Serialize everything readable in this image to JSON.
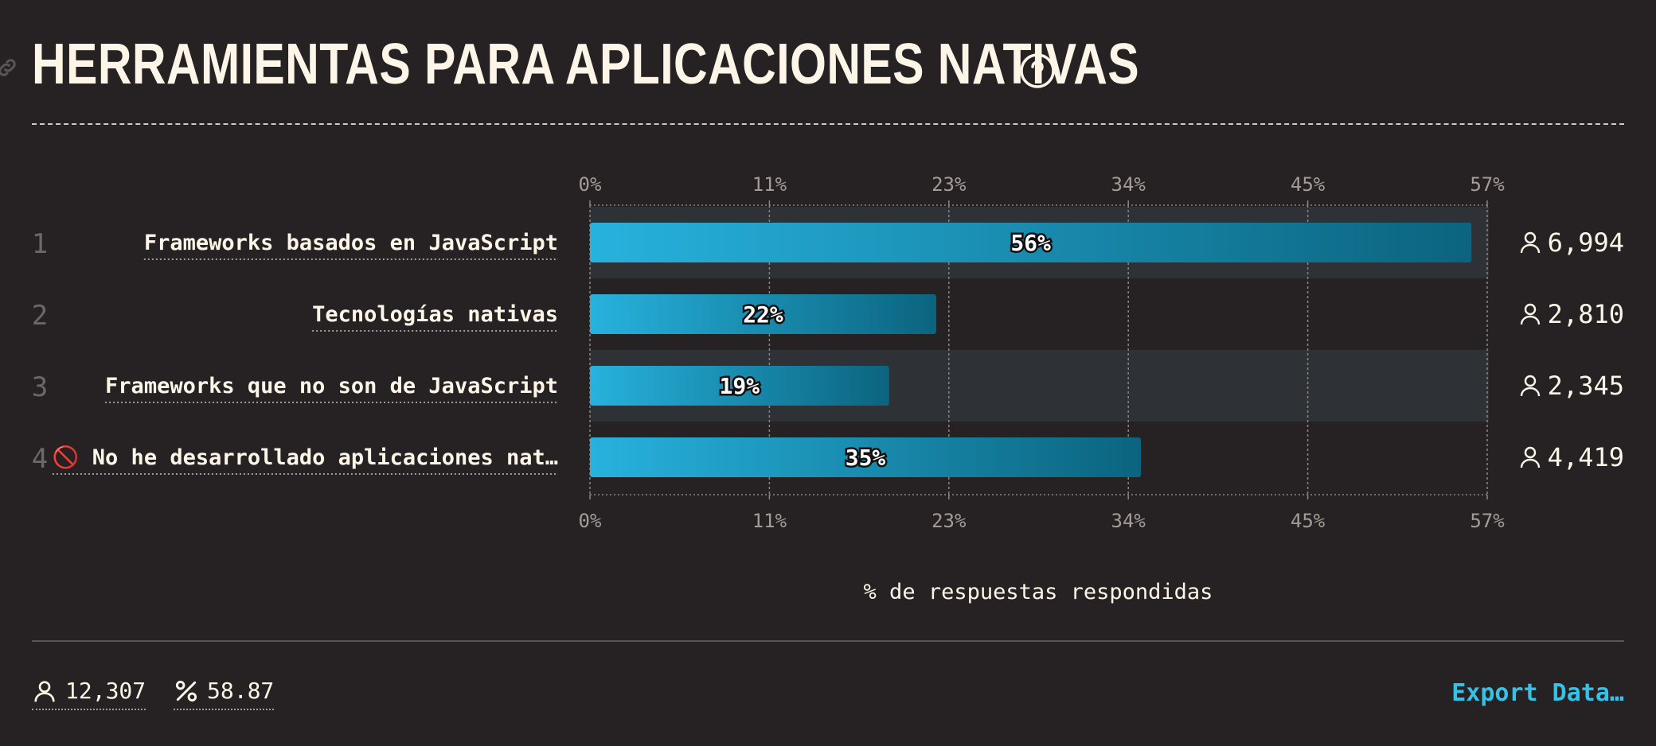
{
  "header": {
    "title": "HERRAMIENTAS PARA APLICACIONES NATIVAS",
    "help_icon": "question-circle-icon",
    "link_icon": "link-icon"
  },
  "chart_data": {
    "type": "bar",
    "orientation": "horizontal",
    "title": "HERRAMIENTAS PARA APLICACIONES NATIVAS",
    "xlabel": "% de respuestas respondidas",
    "xlim": [
      0,
      57
    ],
    "ticks": [
      "0%",
      "11%",
      "23%",
      "34%",
      "45%",
      "57%"
    ],
    "tick_values": [
      0,
      11.4,
      22.8,
      34.2,
      45.6,
      57
    ],
    "categories": [
      "Frameworks basados en JavaScript",
      "Tecnologías nativas",
      "Frameworks que no son de JavaScript",
      "🚫 No he desarrollado aplicaciones nat…"
    ],
    "ranks": [
      "1",
      "2",
      "3",
      "4"
    ],
    "values": [
      56,
      22,
      19,
      35
    ],
    "value_labels": [
      "56%",
      "22%",
      "19%",
      "35%"
    ],
    "counts": [
      "6,994",
      "2,810",
      "2,345",
      "4,419"
    ],
    "colors": {
      "bar_start": "#27b2dd",
      "bar_end": "#0b647f",
      "highlight_band": "#2e3236"
    }
  },
  "footer": {
    "respondents": "12,307",
    "percent": "58.87",
    "export_label": "Export Data…"
  }
}
